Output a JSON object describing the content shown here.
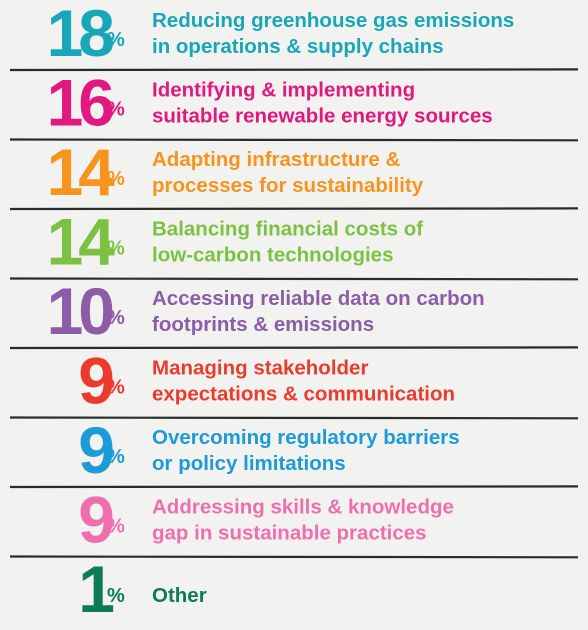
{
  "items": [
    {
      "number": 18,
      "unit": "%",
      "color": "#17a7b8",
      "lines": [
        "Reducing greenhouse gas emissions",
        "in operations & supply chains"
      ]
    },
    {
      "number": 16,
      "unit": "%",
      "color": "#e3187f",
      "lines": [
        "Identifying & implementing",
        "suitable renewable energy sources"
      ]
    },
    {
      "number": 14,
      "unit": "%",
      "color": "#f7941d",
      "lines": [
        "Adapting infrastructure &",
        "processes for sustainability"
      ]
    },
    {
      "number": 14,
      "unit": "%",
      "color": "#7cc242",
      "lines": [
        "Balancing financial costs of",
        "low-carbon technologies"
      ]
    },
    {
      "number": 10,
      "unit": "%",
      "color": "#8d5ca7",
      "lines": [
        "Accessing reliable data on carbon",
        "footprints & emissions"
      ]
    },
    {
      "number": 9,
      "unit": "%",
      "color": "#ec3a2c",
      "lines": [
        "Managing stakeholder",
        "expectations & communication"
      ]
    },
    {
      "number": 9,
      "unit": "%",
      "color": "#1c9bd7",
      "lines": [
        "Overcoming regulatory barriers",
        "or policy limitations"
      ]
    },
    {
      "number": 9,
      "unit": "%",
      "color": "#ef6fae",
      "lines": [
        "Addressing skills & knowledge",
        "gap in sustainable practices"
      ]
    },
    {
      "number": 1,
      "unit": "%",
      "color": "#0f7a58",
      "lines": [
        "Other"
      ]
    }
  ]
}
